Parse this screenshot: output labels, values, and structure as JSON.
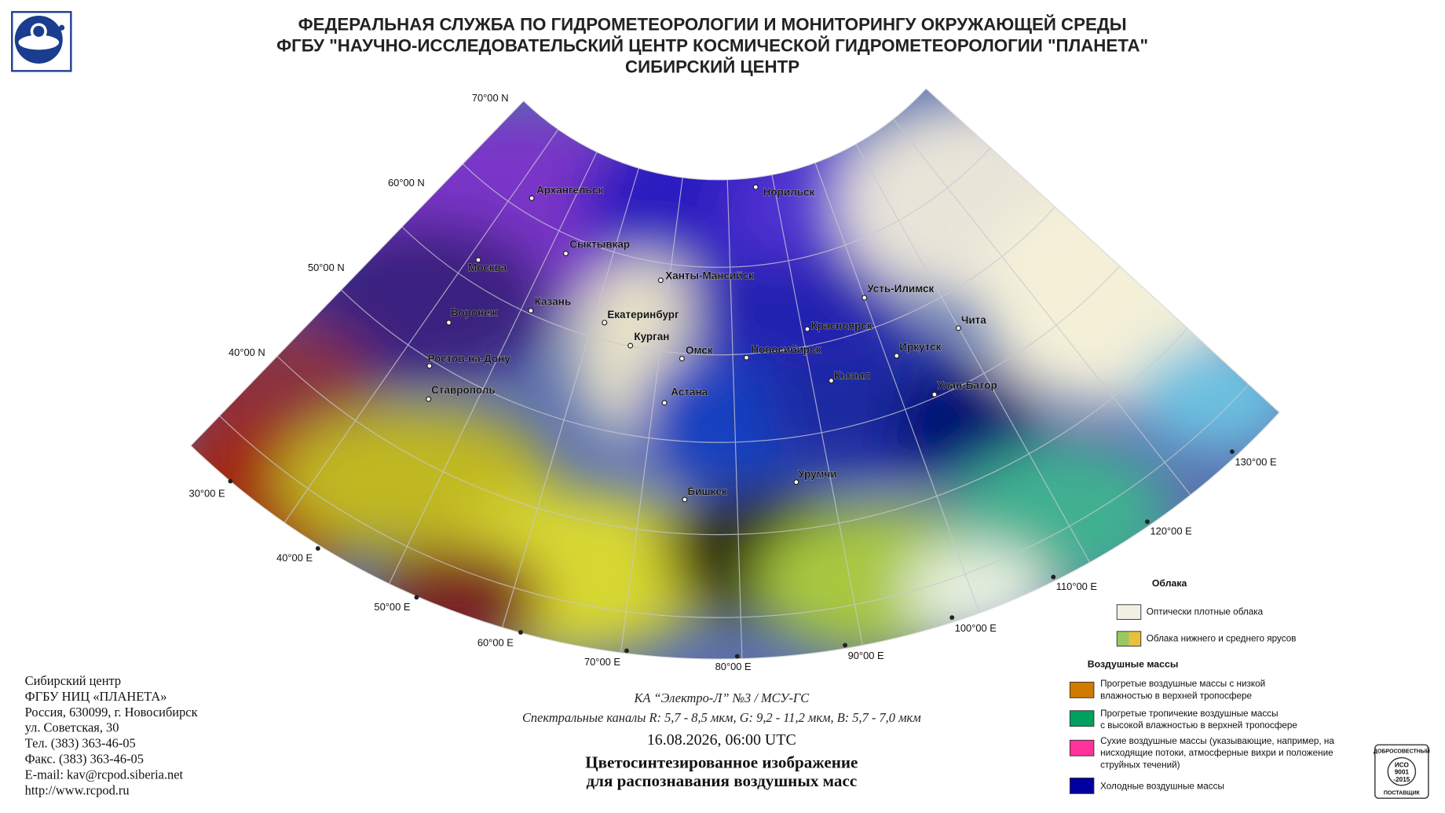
{
  "header": {
    "lines": [
      "ФЕДЕРАЛЬНАЯ СЛУЖБА ПО ГИДРОМЕТЕОРОЛОГИИ И МОНИТОРИНГУ ОКРУЖАЮЩЕЙ СРЕДЫ",
      "ФГБУ \"НАУЧНО-ИССЛЕДОВАТЕЛЬСКИЙ ЦЕНТР КОСМИЧЕСКОЙ ГИДРОМЕТЕОРОЛОГИИ \"ПЛАНЕТА\"",
      "СИБИРСКИЙ ЦЕНТР"
    ]
  },
  "map": {
    "latitudes": [
      "70°00 N",
      "60°00 N",
      "50°00 N",
      "40°00 N"
    ],
    "longitudes": [
      "30°00 E",
      "40°00 E",
      "50°00 E",
      "60°00 E",
      "70°00 E",
      "80°00 E",
      "90°00 E",
      "100°00 E",
      "110°00 E",
      "120°00 E",
      "130°00 E"
    ],
    "cities": [
      "Архангельск",
      "Норильск",
      "Сыктывкар",
      "Москва",
      "Ханты-Мансийск",
      "Усть-Илимск",
      "Казань",
      "Воронеж",
      "Екатеринбург",
      "Красноярск",
      "Чита",
      "Курган",
      "Омск",
      "Новосибирск",
      "Иркутск",
      "Ростов-на-Дону",
      "Кызыл",
      "Улан-Батор",
      "Ставрополь",
      "Астана",
      "Урумчи",
      "Бишкек"
    ]
  },
  "legend": {
    "clouds_title": "Облака",
    "clouds": [
      "Оптически плотные облака",
      "Облака нижнего и среднего ярусов"
    ],
    "air_title": "Воздушные массы",
    "air": [
      [
        "Прогретые воздушные массы с низкой",
        "влажностью в верхней тропосфере"
      ],
      [
        "Прогретые тропичекие воздушные массы",
        "с высокой влажностью в верхней тропосфере"
      ],
      [
        "Сухие воздушные массы (указывающие, например, на",
        "нисходящие потоки, атмосферные вихри и положение",
        "струйных течений)"
      ],
      [
        "Холодные воздушные массы"
      ]
    ]
  },
  "contact": {
    "lines": [
      "Сибирский центр",
      "ФГБУ НИЦ «ПЛАНЕТА»",
      "Россия, 630099, г. Новосибирск",
      "ул. Советская, 30",
      "Тел. (383) 363-46-05",
      "Факс. (383) 363-46-05",
      "E-mail: kav@rcpod.siberia.net",
      "http://www.rcpod.ru"
    ]
  },
  "caption": {
    "satellite": "КА “Электро-Л” №3 / МСУ-ГС",
    "channels": "Спектральные каналы R: 5,7 - 8,5 мкм, G: 9,2 - 11,2 мкм, B: 5,7 - 7,0 мкм",
    "datetime": "16.08.2026, 06:00 UTC",
    "title_lines": [
      "Цветосинтезированное изображение",
      "для распознавания воздушных масс"
    ]
  },
  "badge": [
    "ДОБРОСОВЕСТНЫЙ",
    "ИСО",
    "9001",
    "-2015",
    "ПОСТАВЩИК"
  ]
}
